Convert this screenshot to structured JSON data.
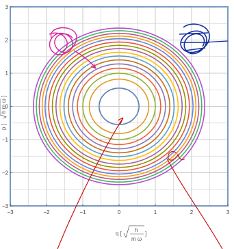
{
  "chart_data": {
    "type": "line",
    "title": "",
    "xlabel": "q [√(ħ/mω)]",
    "ylabel": "p [√(ħmω)]",
    "xlabel_parts": {
      "q": "q [",
      "h": "h",
      "m_omega": "m ω",
      "close": "]"
    },
    "ylabel_parts": {
      "p": "p [",
      "h_m_omega": "h m ω",
      "close": "]"
    },
    "xlim": [
      -3,
      3
    ],
    "ylim": [
      -3,
      3
    ],
    "xticks": [
      -3,
      -2,
      -1,
      0,
      1,
      2,
      3
    ],
    "yticks": [
      -3,
      -2,
      -1,
      0,
      1,
      2,
      3
    ],
    "xtick_labels": [
      "−3",
      "−2",
      "−1",
      "0",
      "1",
      "2",
      "3"
    ],
    "ytick_labels": [
      "−3",
      "−2",
      "−1",
      "0",
      "1",
      "2",
      "3"
    ],
    "grid": true,
    "series": [
      {
        "radius": 0.55,
        "color": "#5E81B5"
      },
      {
        "radius": 0.82,
        "color": "#E19C24"
      },
      {
        "radius": 1.0,
        "color": "#8FB032"
      },
      {
        "radius": 1.15,
        "color": "#EB6235"
      },
      {
        "radius": 1.28,
        "color": "#8778B3"
      },
      {
        "radius": 1.4,
        "color": "#C56E1A"
      },
      {
        "radius": 1.52,
        "color": "#5D9EC7"
      },
      {
        "radius": 1.63,
        "color": "#FFBF00"
      },
      {
        "radius": 1.74,
        "color": "#A5609D"
      },
      {
        "radius": 1.84,
        "color": "#929600"
      },
      {
        "radius": 1.94,
        "color": "#E95536"
      },
      {
        "radius": 2.04,
        "color": "#6685D9"
      },
      {
        "radius": 2.12,
        "color": "#F89F13"
      },
      {
        "radius": 2.2,
        "color": "#BC5B80"
      },
      {
        "radius": 2.28,
        "color": "#47B66D"
      },
      {
        "radius": 2.36,
        "color": "#B24FD0"
      }
    ]
  },
  "annotations": {
    "ink_magenta": "#D6249B",
    "ink_blue": "#1230A0",
    "ink_red": "#C81818"
  }
}
